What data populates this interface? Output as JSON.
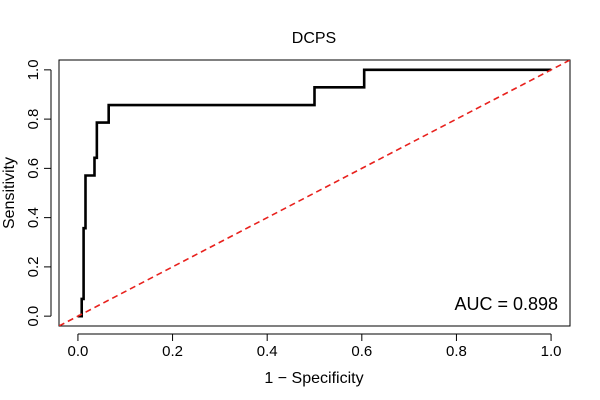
{
  "chart_data": {
    "type": "line",
    "title": "DCPS",
    "xlabel": "1 − Specificity",
    "ylabel": "Sensitivity",
    "xlim": [
      -0.04,
      1.04
    ],
    "ylim": [
      -0.04,
      1.04
    ],
    "x_ticks": [
      0.0,
      0.2,
      0.4,
      0.6,
      0.8,
      1.0
    ],
    "x_tick_labels": [
      "0.0",
      "0.2",
      "0.4",
      "0.6",
      "0.8",
      "1.0"
    ],
    "y_ticks": [
      0.0,
      0.2,
      0.4,
      0.6,
      0.8,
      1.0
    ],
    "y_tick_labels": [
      "0.0",
      "0.2",
      "0.4",
      "0.6",
      "0.8",
      "1.0"
    ],
    "grid": false,
    "annotation": "AUC = 0.898",
    "colors": {
      "roc": "#000000",
      "reference": "#e8211d",
      "frame": "#000000"
    },
    "series": [
      {
        "name": "ROC curve",
        "style": "solid",
        "x": [
          0.0,
          0.008,
          0.008,
          0.012,
          0.012,
          0.016,
          0.016,
          0.02,
          0.02,
          0.035,
          0.035,
          0.04,
          0.04,
          0.045,
          0.045,
          0.065,
          0.065,
          0.5,
          0.5,
          0.605,
          0.605,
          1.0
        ],
        "y": [
          0.0,
          0.0,
          0.07,
          0.07,
          0.357,
          0.357,
          0.571,
          0.571,
          0.571,
          0.571,
          0.643,
          0.643,
          0.786,
          0.786,
          0.786,
          0.786,
          0.857,
          0.857,
          0.929,
          0.929,
          1.0,
          1.0
        ]
      },
      {
        "name": "Reference line",
        "style": "dashed",
        "x": [
          -0.04,
          1.04
        ],
        "y": [
          -0.04,
          1.04
        ]
      }
    ]
  }
}
